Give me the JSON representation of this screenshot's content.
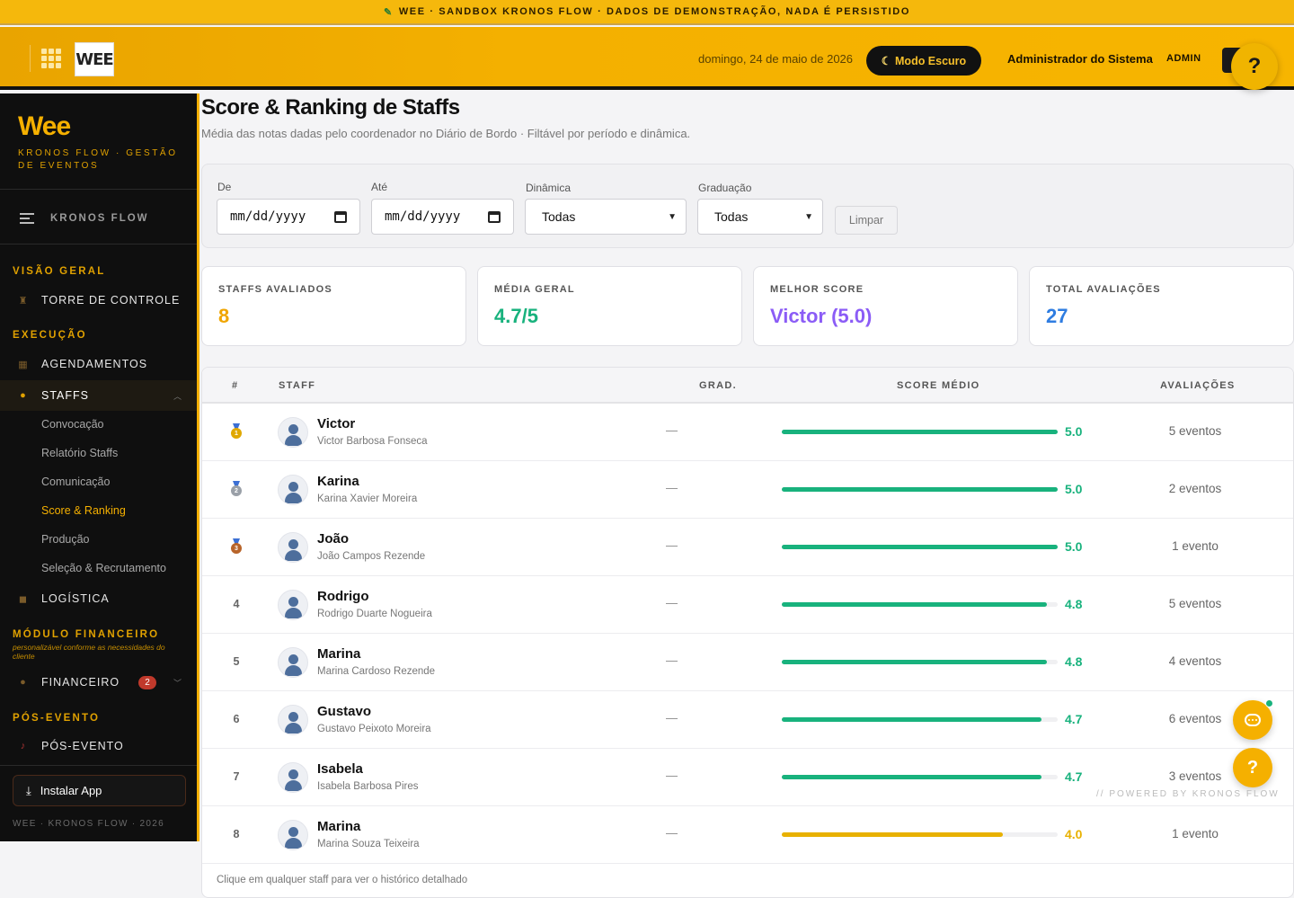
{
  "banner": {
    "text": "WEE · SANDBOX KRONOS FLOW · DADOS DE DEMONSTRAÇÃO, NADA É PERSISTIDO",
    "icon": "pencil-icon"
  },
  "header": {
    "logo_text": "WEE",
    "date": "domingo, 24 de maio de 2026",
    "dark_mode_label": "Modo Escuro",
    "user_name": "Administrador do Sistema",
    "user_role": "ADMIN",
    "exit_label": "Sair",
    "help_label": "?"
  },
  "sidebar": {
    "brand": "Wee",
    "brand_sub": "KRONOS FLOW · GESTÃO DE EVENTOS",
    "menu_label": "KRONOS FLOW",
    "sections": {
      "overview": "VISÃO GERAL",
      "execution": "EXECUÇÃO",
      "finance": "MÓDULO FINANCEIRO",
      "finance_note": "personalizável conforme as necessidades do cliente",
      "post": "PÓS-EVENTO"
    },
    "items": {
      "control_tower": "TORRE DE CONTROLE",
      "schedules": "AGENDAMENTOS",
      "staffs": "STAFFS",
      "logistics": "LOGÍSTICA",
      "finance": "FINANCEIRO",
      "finance_badge": "2",
      "post_event": "PÓS-EVENTO"
    },
    "subitems": {
      "summons": "Convocação",
      "report": "Relatório Staffs",
      "communication": "Comunicação",
      "score": "Score & Ranking",
      "production": "Produção",
      "recruitment": "Seleção & Recrutamento"
    },
    "install_label": "Instalar App",
    "footer": "WEE · KRONOS FLOW · 2026"
  },
  "page": {
    "title": "Score & Ranking de Staffs",
    "subtitle": "Média das notas dadas pelo coordenador no Diário de Bordo · Filtável por período e dinâmica."
  },
  "filters": {
    "from_label": "De",
    "from_placeholder": "mm/dd/yyyy",
    "to_label": "Até",
    "to_placeholder": "mm/dd/yyyy",
    "dynamic_label": "Dinâmica",
    "dynamic_value": "Todas",
    "grad_label": "Graduação",
    "grad_value": "Todas",
    "clear_label": "Limpar"
  },
  "kpis": [
    {
      "label": "STAFFS AVALIADOS",
      "value": "8",
      "color": "#f0a500"
    },
    {
      "label": "MÉDIA GERAL",
      "value": "4.7/5",
      "color": "#18b27d"
    },
    {
      "label": "MELHOR SCORE",
      "value": "Victor (5.0)",
      "color": "#8b5cf6"
    },
    {
      "label": "TOTAL AVALIAÇÕES",
      "value": "27",
      "color": "#2f7de1"
    }
  ],
  "table": {
    "headers": {
      "rank": "#",
      "staff": "STAFF",
      "grad": "GRAD.",
      "score": "SCORE MÉDIO",
      "evals": "AVALIAÇÕES"
    },
    "rows": [
      {
        "rank": "1",
        "medal": "gold",
        "name": "Victor",
        "full_name": "Victor Barbosa Fonseca",
        "grad": "—",
        "score": "5.0",
        "score_value": 5.0,
        "evals": "5 eventos"
      },
      {
        "rank": "2",
        "medal": "silver",
        "name": "Karina",
        "full_name": "Karina Xavier Moreira",
        "grad": "—",
        "score": "5.0",
        "score_value": 5.0,
        "evals": "2 eventos"
      },
      {
        "rank": "3",
        "medal": "bronze",
        "name": "João",
        "full_name": "João Campos Rezende",
        "grad": "—",
        "score": "5.0",
        "score_value": 5.0,
        "evals": "1 evento"
      },
      {
        "rank": "4",
        "medal": "",
        "name": "Rodrigo",
        "full_name": "Rodrigo Duarte Nogueira",
        "grad": "—",
        "score": "4.8",
        "score_value": 4.8,
        "evals": "5 eventos"
      },
      {
        "rank": "5",
        "medal": "",
        "name": "Marina",
        "full_name": "Marina Cardoso Rezende",
        "grad": "—",
        "score": "4.8",
        "score_value": 4.8,
        "evals": "4 eventos"
      },
      {
        "rank": "6",
        "medal": "",
        "name": "Gustavo",
        "full_name": "Gustavo Peixoto Moreira",
        "grad": "—",
        "score": "4.7",
        "score_value": 4.7,
        "evals": "6 eventos"
      },
      {
        "rank": "7",
        "medal": "",
        "name": "Isabela",
        "full_name": "Isabela Barbosa Pires",
        "grad": "—",
        "score": "4.7",
        "score_value": 4.7,
        "evals": "3 eventos"
      },
      {
        "rank": "8",
        "medal": "",
        "name": "Marina",
        "full_name": "Marina Souza Teixeira",
        "grad": "—",
        "score": "4.0",
        "score_value": 4.0,
        "evals": "1 evento"
      }
    ],
    "footer": "Clique em qualquer staff para ver o histórico detalhado"
  },
  "colors": {
    "score_high": "#18b27d",
    "score_mid": "#e8b100",
    "gold": "#e0a800",
    "silver": "#9aa0a8",
    "bronze": "#b8642a"
  },
  "floating": {
    "powered": "// POWERED BY KRONOS FLOW",
    "help_label": "?"
  }
}
